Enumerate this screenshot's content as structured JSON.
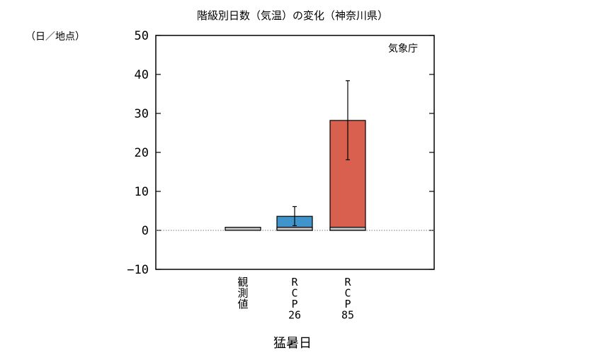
{
  "chart_data": {
    "type": "bar",
    "title": "階級別日数（気温）の変化（神奈川県）",
    "ylabel": "（日／地点）",
    "xlabel": "猛暑日",
    "source": "気象庁",
    "ylim": [
      -10,
      50
    ],
    "yticks": [
      -10,
      0,
      10,
      20,
      30,
      40,
      50
    ],
    "categories": [
      "観測値",
      "RCP26",
      "RCP85"
    ],
    "category_labels_vertical": [
      [
        "観",
        "測",
        "値"
      ],
      [
        "R",
        "C",
        "P",
        "26"
      ],
      [
        "R",
        "C",
        "P",
        "85"
      ]
    ],
    "baseline_value": 0.8,
    "values": [
      0.8,
      3.6,
      28.2
    ],
    "error_low": [
      null,
      1.2,
      18.1
    ],
    "error_high": [
      null,
      6.1,
      38.4
    ],
    "colors": {
      "observed": "#c0c0c0",
      "rcp26": "#3f95c9",
      "rcp85": "#d9604f",
      "zero_line": "#777777"
    },
    "grid": false,
    "legend": "none"
  }
}
